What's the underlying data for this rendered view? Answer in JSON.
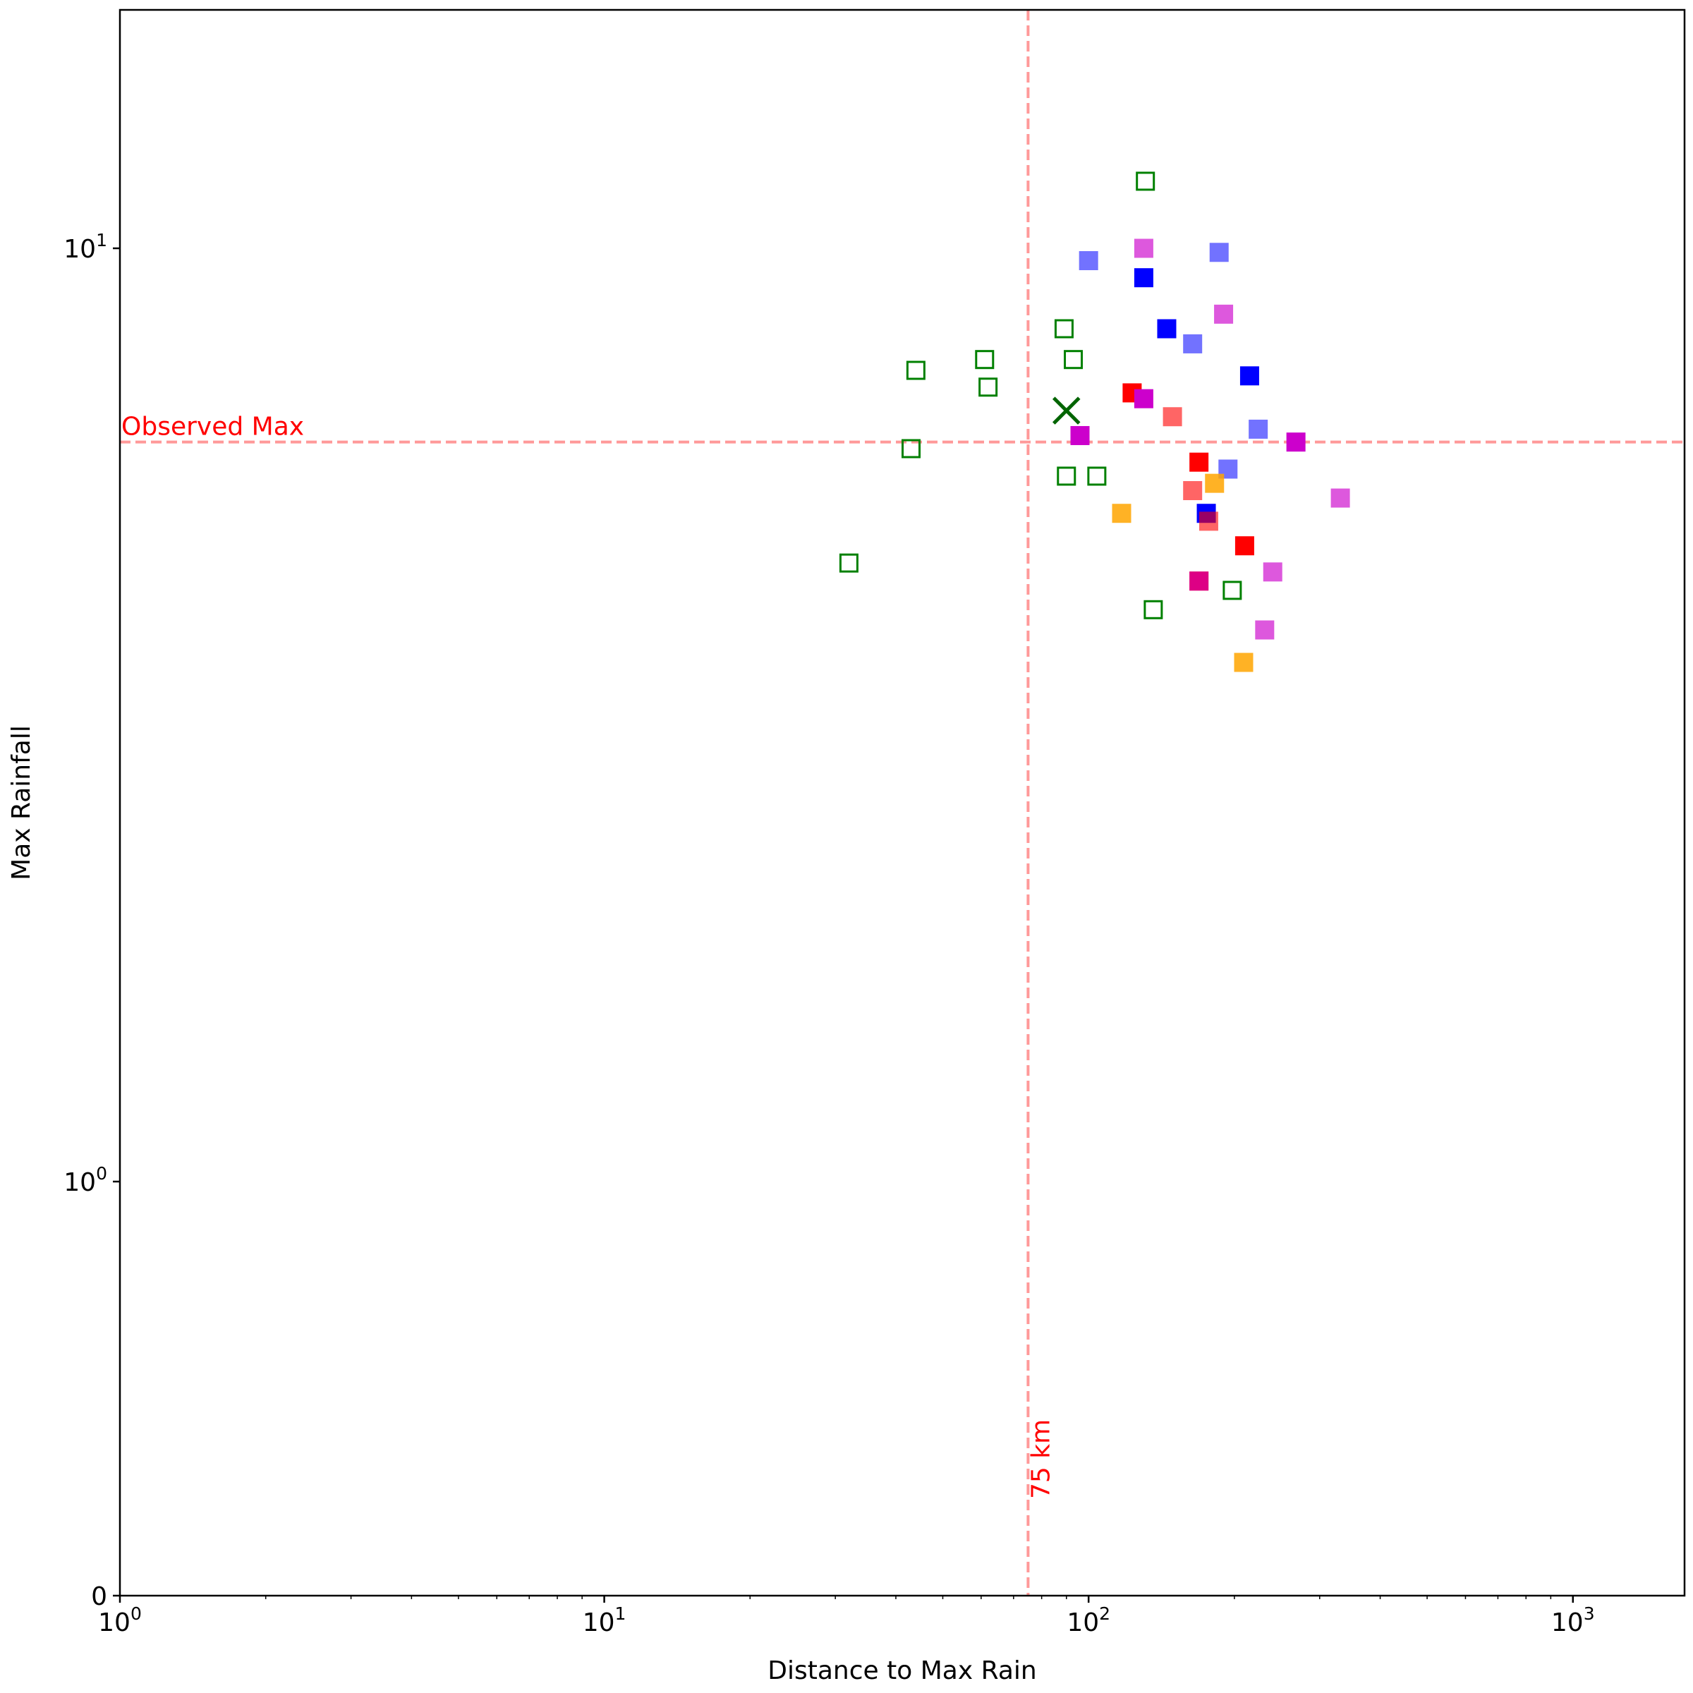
{
  "chart_data": {
    "type": "scatter",
    "title": "",
    "xlabel": "Distance to Max Rain",
    "ylabel": "Max Rainfall",
    "x_scale": "log",
    "y_scale": "symlog",
    "xlim": [
      1,
      1700
    ],
    "ylim": [
      0,
      20
    ],
    "x_ticks": [
      {
        "value": 1,
        "base": "10",
        "exp": "0"
      },
      {
        "value": 10,
        "base": "10",
        "exp": "1"
      },
      {
        "value": 100,
        "base": "10",
        "exp": "2"
      },
      {
        "value": 1000,
        "base": "10",
        "exp": "3"
      }
    ],
    "y_ticks": [
      {
        "value": 0,
        "label": "0"
      },
      {
        "value": 1,
        "base": "10",
        "exp": "0"
      },
      {
        "value": 10,
        "base": "10",
        "exp": "1"
      }
    ],
    "grid": false,
    "reference_lines": [
      {
        "orientation": "vertical",
        "value": 75,
        "label": "75 km",
        "color": "#ff9999"
      },
      {
        "orientation": "horizontal",
        "value": 6.2,
        "label": "Observed Max",
        "color": "#ff9999"
      }
    ],
    "marker_x": {
      "x": 90,
      "y": 6.7,
      "color": "#006400"
    },
    "series": [
      {
        "color": "#008000",
        "fill": false,
        "opacity": 1.0,
        "points": [
          [
            32,
            4.6
          ],
          [
            43,
            6.1
          ],
          [
            44,
            7.4
          ],
          [
            61,
            7.6
          ],
          [
            62,
            7.1
          ],
          [
            89,
            8.2
          ],
          [
            93,
            7.6
          ],
          [
            90,
            5.7
          ],
          [
            104,
            5.7
          ],
          [
            131,
            11.8
          ],
          [
            136,
            4.1
          ],
          [
            198,
            4.3
          ]
        ]
      },
      {
        "color": "#0000ff",
        "fill": true,
        "opacity": 1.0,
        "points": [
          [
            130,
            9.3
          ],
          [
            145,
            8.2
          ],
          [
            215,
            7.3
          ],
          [
            175,
            5.2
          ]
        ]
      },
      {
        "color": "#0000ff",
        "fill": true,
        "opacity": 0.55,
        "points": [
          [
            100,
            9.7
          ],
          [
            186,
            9.9
          ],
          [
            164,
            7.9
          ],
          [
            224,
            6.4
          ],
          [
            194,
            5.8
          ]
        ]
      },
      {
        "color": "#ff0000",
        "fill": true,
        "opacity": 1.0,
        "points": [
          [
            123,
            7.0
          ],
          [
            169,
            5.9
          ],
          [
            210,
            4.8
          ],
          [
            169,
            4.4
          ]
        ]
      },
      {
        "color": "#ff0000",
        "fill": true,
        "opacity": 0.6,
        "points": [
          [
            149,
            6.6
          ],
          [
            164,
            5.5
          ],
          [
            177,
            5.1
          ]
        ]
      },
      {
        "color": "#ffa500",
        "fill": true,
        "opacity": 0.85,
        "points": [
          [
            117,
            5.2
          ],
          [
            182,
            5.6
          ],
          [
            209,
            3.6
          ]
        ]
      },
      {
        "color": "#cc00cc",
        "fill": true,
        "opacity": 1.0,
        "points": [
          [
            96,
            6.3
          ],
          [
            130,
            6.9
          ],
          [
            268,
            6.2
          ]
        ]
      },
      {
        "color": "#cc00cc",
        "fill": true,
        "opacity": 0.65,
        "points": [
          [
            130,
            10.0
          ],
          [
            190,
            8.5
          ],
          [
            331,
            5.4
          ],
          [
            240,
            4.5
          ],
          [
            231,
            3.9
          ],
          [
            169,
            4.4
          ]
        ]
      }
    ]
  }
}
